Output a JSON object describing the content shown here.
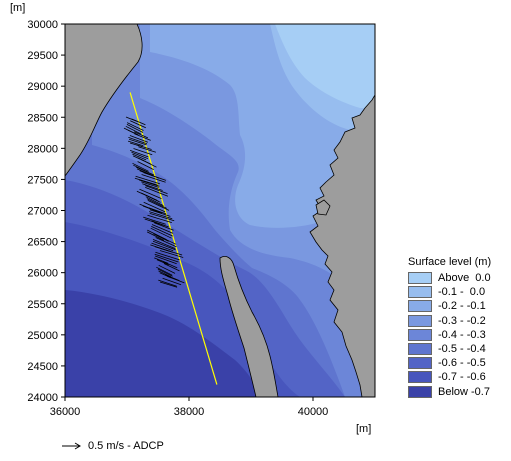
{
  "chart_data": {
    "type": "heatmap",
    "x_unit": "[m]",
    "y_unit": "[m]",
    "x_ticks": [
      "36000",
      "38000",
      "40000"
    ],
    "y_ticks": [
      "30000",
      "29500",
      "29000",
      "28500",
      "28000",
      "27500",
      "27000",
      "26500",
      "26000",
      "25500",
      "25000",
      "24500",
      "24000"
    ],
    "xlim": [
      36000,
      41000
    ],
    "ylim": [
      24000,
      30000
    ],
    "variable": "Surface level (m)",
    "legend_placement": "right",
    "classes": [
      {
        "label": "Above  0.0",
        "color": "#a6cef5"
      },
      {
        "label": "-0.1 -  0.0",
        "color": "#97bdef"
      },
      {
        "label": "-0.2 - -0.1",
        "color": "#88abe8"
      },
      {
        "label": "-0.3 - -0.2",
        "color": "#7a98e0"
      },
      {
        "label": "-0.4 - -0.3",
        "color": "#6c86d8"
      },
      {
        "label": "-0.5 - -0.4",
        "color": "#5f75cf"
      },
      {
        "label": "-0.6 - -0.5",
        "color": "#5364c6"
      },
      {
        "label": "-0.7 - -0.6",
        "color": "#4856bd"
      },
      {
        "label": "Below -0.7",
        "color": "#3a41a8"
      }
    ],
    "land_color": "#9d9d9d",
    "transect": {
      "from": [
        37050,
        28900
      ],
      "to": [
        38450,
        24200
      ],
      "color": "#ffff00"
    },
    "adcp_reference": "0.5 m/s - ADCP"
  }
}
